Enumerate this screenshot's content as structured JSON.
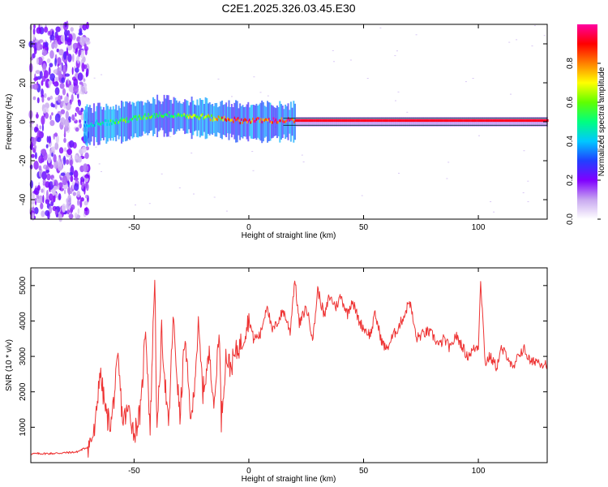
{
  "title": "C2E1.2025.326.03.45.E30",
  "chart_data": [
    {
      "type": "heatmap",
      "xlabel": "Height of straight line (km)",
      "ylabel": "Frequency (Hz)",
      "xlim": [
        -95,
        130
      ],
      "ylim": [
        -50,
        50
      ],
      "xticks": [
        "-50",
        "0",
        "50",
        "100"
      ],
      "xtick_values": [
        -50,
        0,
        50,
        100
      ],
      "yticks": [
        "40",
        "20",
        "0",
        "-20",
        "-40"
      ],
      "ytick_values": [
        40,
        20,
        0,
        -20,
        -40
      ],
      "colorbar": {
        "label": "Normalized spectral amplitude",
        "range": [
          0,
          1
        ],
        "ticks": [
          "0.0",
          "0.2",
          "0.4",
          "0.6",
          "0.8"
        ],
        "tick_values": [
          0.0,
          0.2,
          0.4,
          0.6,
          0.8
        ],
        "colors": [
          "#ffffff",
          "#c8a8f0",
          "#8000ff",
          "#2040ff",
          "#00c8ff",
          "#00ff80",
          "#60ff00",
          "#ffff00",
          "#ff8000",
          "#ff0000",
          "#ff00a0"
        ]
      },
      "noise_region_x": [
        -95,
        -72
      ],
      "ridge": {
        "x": [
          -72,
          -65,
          -60,
          -55,
          -50,
          -45,
          -40,
          -35,
          -30,
          -25,
          -20,
          -15,
          -10,
          -5,
          0,
          10,
          20,
          50,
          100,
          130
        ],
        "freq": [
          -2,
          -1,
          -1,
          0,
          1,
          2,
          3,
          3,
          3,
          2,
          2,
          1,
          1,
          0,
          0,
          0,
          0,
          0,
          0,
          0
        ],
        "amplitude": [
          0.35,
          0.5,
          0.55,
          0.6,
          0.55,
          0.6,
          0.55,
          0.55,
          0.6,
          0.65,
          0.7,
          0.75,
          0.85,
          0.9,
          0.95,
          0.97,
          0.98,
          1.0,
          1.0,
          1.0
        ]
      }
    },
    {
      "type": "line",
      "xlabel": "Height of straight line (km)",
      "ylabel": "SNR (10 * v/v)",
      "xlim": [
        -95,
        130
      ],
      "ylim": [
        0,
        5500
      ],
      "xticks": [
        "-50",
        "0",
        "50",
        "100"
      ],
      "xtick_values": [
        -50,
        0,
        50,
        100
      ],
      "yticks": [
        "5000",
        "4000",
        "3000",
        "2000",
        "1000"
      ],
      "ytick_values": [
        5000,
        4000,
        3000,
        2000,
        1000
      ],
      "color": "#ee3333",
      "series": [
        {
          "x": [
            -95,
            -85,
            -80,
            -75,
            -70,
            -67,
            -65,
            -62,
            -60,
            -57,
            -55,
            -52,
            -50,
            -47,
            -45,
            -43,
            -41,
            -40,
            -38,
            -35,
            -33,
            -30,
            -28,
            -25,
            -22,
            -20,
            -17,
            -15,
            -13,
            -12,
            -10,
            -8,
            -5,
            -3,
            0,
            2,
            5,
            8,
            10,
            12,
            15,
            18,
            20,
            22,
            25,
            28,
            30,
            33,
            35,
            38,
            40,
            43,
            45,
            48,
            50,
            53,
            55,
            58,
            60,
            63,
            65,
            68,
            70,
            73,
            75,
            78,
            80,
            83,
            85,
            88,
            90,
            93,
            95,
            98,
            100,
            101,
            103,
            105,
            108,
            110,
            113,
            115,
            118,
            120,
            123,
            125,
            128,
            130
          ],
          "y": [
            250,
            260,
            280,
            300,
            450,
            900,
            2600,
            1300,
            1100,
            2900,
            1200,
            1500,
            800,
            1500,
            3900,
            900,
            5400,
            700,
            3700,
            900,
            4100,
            1200,
            3500,
            1100,
            3800,
            2000,
            3100,
            1500,
            3900,
            1200,
            3000,
            2700,
            3200,
            3400,
            4100,
            3500,
            3600,
            4500,
            3700,
            3900,
            4300,
            3700,
            5200,
            3900,
            4400,
            3500,
            4900,
            4100,
            4700,
            4400,
            4700,
            4200,
            4600,
            4000,
            3800,
            3600,
            4200,
            3400,
            3200,
            3600,
            3800,
            4200,
            4600,
            3500,
            3600,
            3700,
            3600,
            3300,
            3500,
            3200,
            3600,
            3300,
            3000,
            3200,
            3300,
            5200,
            2800,
            3000,
            2700,
            3200,
            3000,
            2600,
            3100,
            3200,
            2800,
            2900,
            2800,
            2800
          ]
        }
      ]
    }
  ]
}
